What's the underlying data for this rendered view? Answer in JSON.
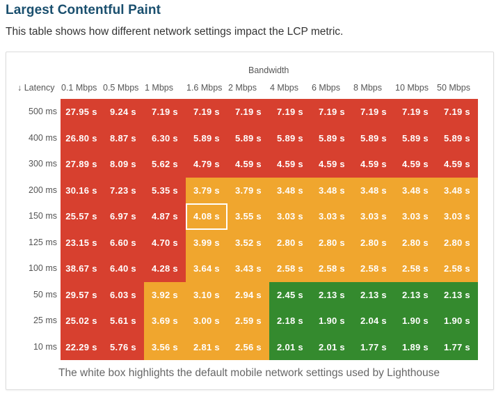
{
  "title": "Largest Contentful Paint",
  "subtitle": "This table shows how different network settings impact the LCP metric.",
  "caption": "The white box highlights the default mobile network settings used by Lighthouse",
  "colors": {
    "red": "#d7402f",
    "orange": "#f0a62e",
    "green": "#348a2e",
    "title": "#1a4f6e"
  },
  "chart_data": {
    "type": "table",
    "title": "Largest Contentful Paint",
    "xlabel": "Bandwidth",
    "ylabel": "↓ Latency",
    "unit": "s",
    "columns": [
      "0.1 Mbps",
      "0.5 Mbps",
      "1 Mbps",
      "1.6 Mbps",
      "2 Mbps",
      "4 Mbps",
      "6 Mbps",
      "8 Mbps",
      "10 Mbps",
      "50 Mbps"
    ],
    "rows": [
      "500 ms",
      "400 ms",
      "300 ms",
      "200 ms",
      "150 ms",
      "125 ms",
      "100 ms",
      "50 ms",
      "25 ms",
      "10 ms"
    ],
    "values": [
      [
        27.95,
        9.24,
        7.19,
        7.19,
        7.19,
        7.19,
        7.19,
        7.19,
        7.19,
        7.19
      ],
      [
        26.8,
        8.87,
        6.3,
        5.89,
        5.89,
        5.89,
        5.89,
        5.89,
        5.89,
        5.89
      ],
      [
        27.89,
        8.09,
        5.62,
        4.79,
        4.59,
        4.59,
        4.59,
        4.59,
        4.59,
        4.59
      ],
      [
        30.16,
        7.23,
        5.35,
        3.79,
        3.79,
        3.48,
        3.48,
        3.48,
        3.48,
        3.48
      ],
      [
        25.57,
        6.97,
        4.87,
        4.08,
        3.55,
        3.03,
        3.03,
        3.03,
        3.03,
        3.03
      ],
      [
        23.15,
        6.6,
        4.7,
        3.99,
        3.52,
        2.8,
        2.8,
        2.8,
        2.8,
        2.8
      ],
      [
        38.67,
        6.4,
        4.28,
        3.64,
        3.43,
        2.58,
        2.58,
        2.58,
        2.58,
        2.58
      ],
      [
        29.57,
        6.03,
        3.92,
        3.1,
        2.94,
        2.45,
        2.13,
        2.13,
        2.13,
        2.13
      ],
      [
        25.02,
        5.61,
        3.69,
        3.0,
        2.59,
        2.18,
        1.9,
        2.04,
        1.9,
        1.9
      ],
      [
        22.29,
        5.76,
        3.56,
        2.81,
        2.56,
        2.01,
        2.01,
        1.77,
        1.89,
        1.77
      ]
    ],
    "status": [
      [
        "poor",
        "poor",
        "poor",
        "poor",
        "poor",
        "poor",
        "poor",
        "poor",
        "poor",
        "poor"
      ],
      [
        "poor",
        "poor",
        "poor",
        "poor",
        "poor",
        "poor",
        "poor",
        "poor",
        "poor",
        "poor"
      ],
      [
        "poor",
        "poor",
        "poor",
        "poor",
        "poor",
        "poor",
        "poor",
        "poor",
        "poor",
        "poor"
      ],
      [
        "poor",
        "poor",
        "poor",
        "needs-improvement",
        "needs-improvement",
        "needs-improvement",
        "needs-improvement",
        "needs-improvement",
        "needs-improvement",
        "needs-improvement"
      ],
      [
        "poor",
        "poor",
        "poor",
        "needs-improvement",
        "needs-improvement",
        "needs-improvement",
        "needs-improvement",
        "needs-improvement",
        "needs-improvement",
        "needs-improvement"
      ],
      [
        "poor",
        "poor",
        "poor",
        "needs-improvement",
        "needs-improvement",
        "needs-improvement",
        "needs-improvement",
        "needs-improvement",
        "needs-improvement",
        "needs-improvement"
      ],
      [
        "poor",
        "poor",
        "poor",
        "needs-improvement",
        "needs-improvement",
        "needs-improvement",
        "needs-improvement",
        "needs-improvement",
        "needs-improvement",
        "needs-improvement"
      ],
      [
        "poor",
        "poor",
        "needs-improvement",
        "needs-improvement",
        "needs-improvement",
        "good",
        "good",
        "good",
        "good",
        "good"
      ],
      [
        "poor",
        "poor",
        "needs-improvement",
        "needs-improvement",
        "needs-improvement",
        "good",
        "good",
        "good",
        "good",
        "good"
      ],
      [
        "poor",
        "poor",
        "needs-improvement",
        "needs-improvement",
        "needs-improvement",
        "good",
        "good",
        "good",
        "good",
        "good"
      ]
    ],
    "highlighted_cell": {
      "latency": "150 ms",
      "bandwidth": "1.6 Mbps"
    }
  }
}
